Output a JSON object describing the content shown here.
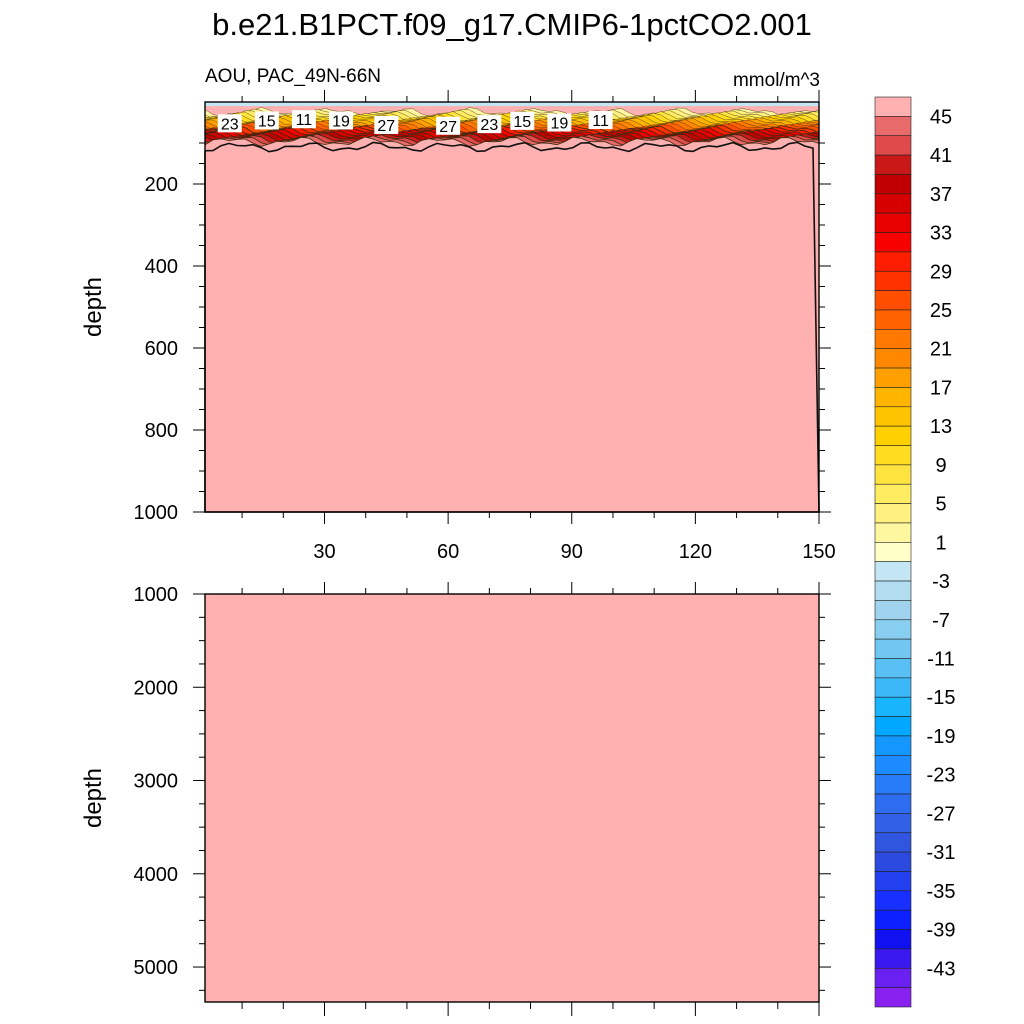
{
  "title": "b.e21.B1PCT.f09_g17.CMIP6-1pctCO2.001",
  "chart_data": [
    {
      "type": "heatmap",
      "panel": "upper",
      "left_label": "AOU, PAC_49N-66N",
      "right_label": "mmol/m^3",
      "ylabel": "depth",
      "xlabel": "",
      "xlim": [
        1,
        150
      ],
      "ylim": [
        0,
        1000
      ],
      "y_reversed": true,
      "xticks": [
        30,
        60,
        90,
        120,
        150
      ],
      "xtick_labels": [
        "30",
        "60",
        "90",
        "120",
        "150"
      ],
      "yticks": [
        200,
        400,
        600,
        800,
        1000
      ],
      "ytick_labels": [
        "200",
        "400",
        "600",
        "800",
        "1000"
      ],
      "surface_negative_depth": 10,
      "transition_top_depth": 25,
      "transition_bottom_depth": 100,
      "deep_value": 47,
      "contour_labels": [
        {
          "text": "23",
          "x": 7,
          "y": 52
        },
        {
          "text": "15",
          "x": 16,
          "y": 45
        },
        {
          "text": "11",
          "x": 25,
          "y": 42
        },
        {
          "text": "19",
          "x": 34,
          "y": 45
        },
        {
          "text": "27",
          "x": 45,
          "y": 56
        },
        {
          "text": "27",
          "x": 60,
          "y": 58
        },
        {
          "text": "23",
          "x": 70,
          "y": 54
        },
        {
          "text": "15",
          "x": 78,
          "y": 46
        },
        {
          "text": "19",
          "x": 87,
          "y": 50
        },
        {
          "text": "11",
          "x": 97,
          "y": 44
        }
      ]
    },
    {
      "type": "heatmap",
      "panel": "lower",
      "ylabel": "depth",
      "xlim": [
        1,
        150
      ],
      "ylim": [
        1000,
        5375
      ],
      "y_reversed": true,
      "yticks": [
        1000,
        2000,
        3000,
        4000,
        5000
      ],
      "ytick_labels": [
        "1000",
        "2000",
        "3000",
        "4000",
        "5000"
      ],
      "uniform_value": 47
    }
  ],
  "colorbar": {
    "levels": [
      45,
      43,
      41,
      39,
      37,
      35,
      33,
      31,
      29,
      27,
      25,
      23,
      21,
      19,
      17,
      15,
      13,
      11,
      9,
      7,
      5,
      3,
      1,
      -1,
      -3,
      -5,
      -7,
      -9,
      -11,
      -13,
      -15,
      -17,
      -19,
      -21,
      -23,
      -25,
      -27,
      -29,
      -31,
      -33,
      -35,
      -37,
      -39,
      -41,
      -43,
      -45
    ],
    "labels": [
      "45",
      "41",
      "37",
      "33",
      "29",
      "25",
      "21",
      "17",
      "13",
      "9",
      "5",
      "1",
      "-3",
      "-7",
      "-11",
      "-15",
      "-19",
      "-23",
      "-27",
      "-31",
      "-35",
      "-39",
      "-43"
    ],
    "colors": [
      "#ffb0b0",
      "#e86a6a",
      "#e04a4a",
      "#c81818",
      "#c00000",
      "#d60000",
      "#e80000",
      "#f80000",
      "#ff1e00",
      "#ff3200",
      "#ff4e00",
      "#ff6200",
      "#ff7800",
      "#ff8800",
      "#ffa000",
      "#ffb400",
      "#ffc400",
      "#ffd000",
      "#ffdc20",
      "#ffe440",
      "#ffec60",
      "#fff080",
      "#fff6a0",
      "#ffffc8",
      "#c4e6f4",
      "#b2dcf0",
      "#a0d4ee",
      "#88cef0",
      "#70c8f2",
      "#58c0f4",
      "#3cb8f8",
      "#18b4fc",
      "#00a8ff",
      "#1498ff",
      "#1e8aff",
      "#287cf8",
      "#2e6cf0",
      "#3260e6",
      "#3056e0",
      "#2c4ae0",
      "#2240f0",
      "#1830ff",
      "#0c20ff",
      "#1010f0",
      "#3a18f0",
      "#6a20f0",
      "#8820f0"
    ]
  }
}
